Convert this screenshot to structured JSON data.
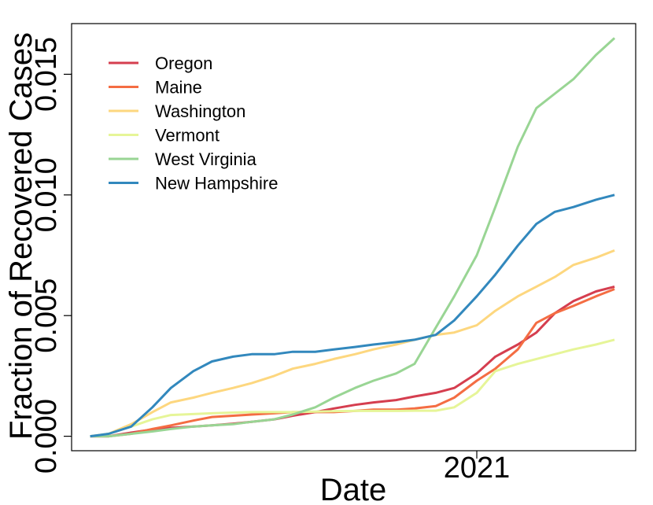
{
  "chart_data": {
    "type": "line",
    "xlabel": "Date",
    "ylabel": "Fraction of Recovered Cases",
    "x_tick_labels": [
      "2021"
    ],
    "x_ticks": [
      "2021-01-01"
    ],
    "xlim": [
      "2020-03-01",
      "2021-05-01"
    ],
    "y_ticks": [
      0.0,
      0.005,
      0.01,
      0.015
    ],
    "y_tick_labels": [
      "0.000",
      "0.005",
      "0.010",
      "0.015"
    ],
    "ylim": [
      -0.0006,
      0.0171
    ],
    "legend_position": "top-left",
    "grid": false,
    "x": [
      "2020-03-15",
      "2020-03-29",
      "2020-04-15",
      "2020-05-01",
      "2020-05-15",
      "2020-06-01",
      "2020-06-15",
      "2020-07-01",
      "2020-07-15",
      "2020-08-01",
      "2020-08-15",
      "2020-09-01",
      "2020-09-15",
      "2020-10-01",
      "2020-10-15",
      "2020-11-01",
      "2020-11-15",
      "2020-12-01",
      "2020-12-15",
      "2021-01-01",
      "2021-01-15",
      "2021-02-01",
      "2021-02-15",
      "2021-03-01",
      "2021-03-15",
      "2021-04-01",
      "2021-04-15"
    ],
    "series": [
      {
        "name": "Oregon",
        "color": "#d53e4f",
        "values": [
          0,
          0,
          0.00015,
          0.00028,
          0.00035,
          0.0004,
          0.00045,
          0.00052,
          0.0006,
          0.0007,
          0.00085,
          0.001,
          0.00115,
          0.0013,
          0.0014,
          0.0015,
          0.00165,
          0.0018,
          0.002,
          0.0026,
          0.0033,
          0.0038,
          0.0043,
          0.0051,
          0.0056,
          0.006,
          0.0062
        ]
      },
      {
        "name": "Maine",
        "color": "#f46d43",
        "values": [
          0,
          0,
          0.0001,
          0.0003,
          0.00045,
          0.00065,
          0.0008,
          0.00085,
          0.0009,
          0.00095,
          0.001,
          0.001,
          0.001,
          0.00105,
          0.0011,
          0.0011,
          0.00115,
          0.00125,
          0.0016,
          0.0023,
          0.0028,
          0.0036,
          0.0047,
          0.0051,
          0.0054,
          0.0058,
          0.0061
        ]
      },
      {
        "name": "Washington",
        "color": "#fdd77f",
        "values": [
          0,
          0.0001,
          0.0005,
          0.001,
          0.0014,
          0.0016,
          0.0018,
          0.002,
          0.0022,
          0.0025,
          0.0028,
          0.003,
          0.0032,
          0.0034,
          0.0036,
          0.0038,
          0.004,
          0.0042,
          0.0043,
          0.0046,
          0.0052,
          0.0058,
          0.0062,
          0.0066,
          0.0071,
          0.0074,
          0.0077
        ]
      },
      {
        "name": "Vermont",
        "color": "#e6f598",
        "values": [
          0,
          0.0001,
          0.0004,
          0.0007,
          0.00088,
          0.00092,
          0.00095,
          0.00098,
          0.001,
          0.001,
          0.001,
          0.00102,
          0.00104,
          0.00105,
          0.00105,
          0.00105,
          0.00106,
          0.00106,
          0.0012,
          0.0018,
          0.0027,
          0.003,
          0.0032,
          0.0034,
          0.0036,
          0.0038,
          0.004
        ]
      },
      {
        "name": "West Virginia",
        "color": "#99d594",
        "values": [
          0,
          0,
          0.0001,
          0.0002,
          0.0003,
          0.0004,
          0.00045,
          0.0005,
          0.0006,
          0.0007,
          0.0009,
          0.0012,
          0.0016,
          0.002,
          0.0023,
          0.0026,
          0.003,
          0.0045,
          0.0058,
          0.0075,
          0.0095,
          0.012,
          0.0136,
          0.0142,
          0.0148,
          0.0158,
          0.0165
        ]
      },
      {
        "name": "New Hampshire",
        "color": "#3288bd",
        "values": [
          0,
          0.0001,
          0.0004,
          0.0012,
          0.002,
          0.0027,
          0.0031,
          0.0033,
          0.0034,
          0.0034,
          0.0035,
          0.0035,
          0.0036,
          0.0037,
          0.0038,
          0.0039,
          0.004,
          0.0042,
          0.0048,
          0.0058,
          0.0067,
          0.0079,
          0.0088,
          0.0093,
          0.0095,
          0.0098,
          0.01
        ]
      }
    ]
  }
}
